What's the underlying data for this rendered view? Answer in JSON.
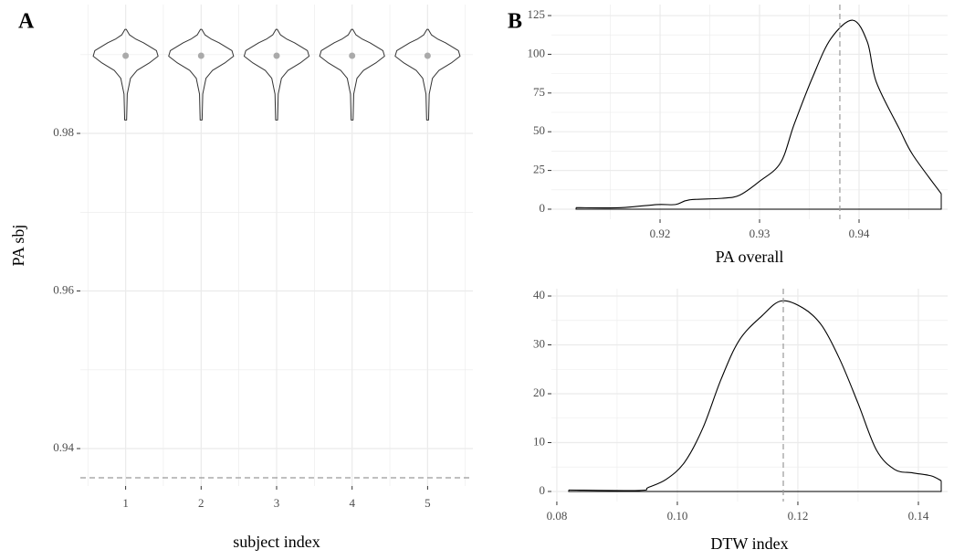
{
  "chart_data": [
    {
      "type": "violin",
      "panel_label": "A",
      "x_label": "subject index",
      "y_label": "PA sbj",
      "categories": [
        "1",
        "2",
        "3",
        "4",
        "5"
      ],
      "density_y": [
        0.9817,
        0.985,
        0.987,
        0.988,
        0.989,
        0.9898,
        0.9905,
        0.9915,
        0.992,
        0.9925,
        0.9932
      ],
      "violins": [
        {
          "density": [
            0.03,
            0.05,
            0.15,
            0.35,
            0.75,
            1.0,
            0.95,
            0.55,
            0.3,
            0.12,
            0.02
          ],
          "median": 0.98986
        },
        {
          "density": [
            0.03,
            0.05,
            0.15,
            0.35,
            0.75,
            1.0,
            0.95,
            0.55,
            0.3,
            0.12,
            0.02
          ],
          "median": 0.98986
        },
        {
          "density": [
            0.03,
            0.05,
            0.15,
            0.35,
            0.75,
            1.0,
            0.95,
            0.55,
            0.3,
            0.12,
            0.02
          ],
          "median": 0.98986
        },
        {
          "density": [
            0.03,
            0.05,
            0.15,
            0.35,
            0.75,
            1.0,
            0.95,
            0.55,
            0.3,
            0.12,
            0.02
          ],
          "median": 0.98986
        },
        {
          "density": [
            0.03,
            0.05,
            0.15,
            0.35,
            0.75,
            1.0,
            0.95,
            0.55,
            0.3,
            0.12,
            0.02
          ],
          "median": 0.98986
        }
      ],
      "hline": 0.93629,
      "ylim": [
        0.93525,
        0.99635
      ],
      "yticks": [
        0.94,
        0.96,
        0.98
      ],
      "grid": true,
      "color": "#333333",
      "point_color": "#aaaaaa",
      "reference_color": "#999999"
    },
    {
      "type": "density",
      "panel_label": "B",
      "x_label": "PA overall",
      "x": [
        0.91156,
        0.91606,
        0.91972,
        0.92156,
        0.92294,
        0.92615,
        0.92798,
        0.93,
        0.93211,
        0.93349,
        0.93532,
        0.93716,
        0.93936,
        0.94083,
        0.94174,
        0.94404,
        0.94541,
        0.94826
      ],
      "values": [
        1,
        1,
        3,
        3,
        6,
        7,
        9,
        18,
        30,
        55,
        85,
        110,
        122,
        108,
        82,
        52,
        35,
        10
      ],
      "vline": 0.93807,
      "xlim": [
        0.90908,
        0.9489
      ],
      "xticks": [
        0.92,
        0.93,
        0.94
      ],
      "ylim": [
        -6.5,
        132.1
      ],
      "yticks": [
        0,
        25,
        50,
        75,
        100,
        125
      ],
      "grid": true,
      "color": "#000000",
      "reference_color": "#999999"
    },
    {
      "type": "density",
      "x_label": "DTW index",
      "x": [
        0.08197,
        0.09364,
        0.09515,
        0.09818,
        0.10121,
        0.10424,
        0.10727,
        0.1103,
        0.11409,
        0.11727,
        0.12091,
        0.12394,
        0.12697,
        0.13,
        0.13303,
        0.13606,
        0.13909,
        0.14212,
        0.14379
      ],
      "values": [
        0.3,
        0.2,
        0.8,
        2.5,
        6,
        13,
        23,
        31,
        36,
        39,
        37.5,
        34,
        27,
        18,
        8.5,
        4.5,
        3.8,
        3.2,
        2.2
      ],
      "vline": 0.11758,
      "xlim": [
        0.0791,
        0.14485
      ],
      "xticks": [
        0.08,
        {
          "value": 0.1,
          "label": "0.10"
        },
        0.12,
        0.14
      ],
      "ylim": [
        -2.06,
        41.5
      ],
      "yticks": [
        0,
        10,
        20,
        30,
        40
      ],
      "grid": true,
      "color": "#000000",
      "reference_color": "#999999"
    }
  ]
}
